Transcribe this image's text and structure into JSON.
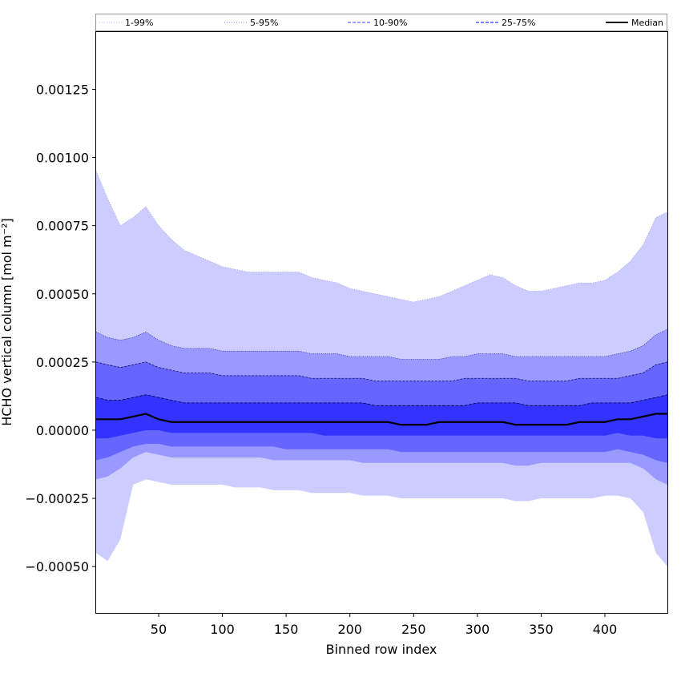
{
  "chart_data": {
    "type": "area",
    "title": "",
    "xlabel": "Binned row index",
    "ylabel": "HCHO vertical column [mol m⁻²]",
    "xlim": [
      1,
      449
    ],
    "ylim": [
      -0.00067,
      0.00146
    ],
    "x_ticks": [
      50,
      100,
      150,
      200,
      250,
      300,
      350,
      400
    ],
    "x_tick_labels": [
      "50",
      "100",
      "150",
      "200",
      "250",
      "300",
      "350",
      "400"
    ],
    "y_ticks": [
      -0.0005,
      -0.00025,
      0.0,
      0.00025,
      0.0005,
      0.00075,
      0.001,
      0.00125
    ],
    "y_tick_labels": [
      "−0.00050",
      "−0.00025",
      "0.00000",
      "0.00025",
      "0.00050",
      "0.00075",
      "0.00100",
      "0.00125"
    ],
    "grid": false,
    "legend_position": "top",
    "legend": [
      {
        "label": "1-99%",
        "color": "#ccccff",
        "style": "dotted"
      },
      {
        "label": "5-95%",
        "color": "#9999ff",
        "style": "dotted"
      },
      {
        "label": "10-90%",
        "color": "#6666ff",
        "style": "dashed"
      },
      {
        "label": "25-75%",
        "color": "#3333ff",
        "style": "dashed"
      },
      {
        "label": "Median",
        "color": "#000000",
        "style": "solid"
      }
    ],
    "x": [
      1,
      10,
      20,
      30,
      40,
      50,
      60,
      70,
      80,
      90,
      100,
      110,
      120,
      130,
      140,
      150,
      160,
      170,
      180,
      190,
      200,
      210,
      220,
      230,
      240,
      250,
      260,
      270,
      280,
      290,
      300,
      310,
      320,
      330,
      340,
      350,
      360,
      370,
      380,
      390,
      400,
      410,
      420,
      430,
      440,
      449
    ],
    "series": [
      {
        "name": "1-99%",
        "fill": "#ccccff",
        "upper": [
          0.00095,
          0.00085,
          0.00075,
          0.00078,
          0.00082,
          0.00075,
          0.0007,
          0.00066,
          0.00064,
          0.00062,
          0.0006,
          0.00059,
          0.00058,
          0.00058,
          0.00058,
          0.00058,
          0.00058,
          0.00056,
          0.00055,
          0.00054,
          0.00052,
          0.00051,
          0.0005,
          0.00049,
          0.00048,
          0.00047,
          0.00048,
          0.00049,
          0.00051,
          0.00053,
          0.00055,
          0.00057,
          0.00056,
          0.00053,
          0.00051,
          0.00051,
          0.00052,
          0.00053,
          0.00054,
          0.00054,
          0.00055,
          0.00058,
          0.00062,
          0.00068,
          0.00078,
          0.0008
        ],
        "lower": [
          -0.00045,
          -0.00048,
          -0.0004,
          -0.0002,
          -0.00018,
          -0.00019,
          -0.0002,
          -0.0002,
          -0.0002,
          -0.0002,
          -0.0002,
          -0.00021,
          -0.00021,
          -0.00021,
          -0.00022,
          -0.00022,
          -0.00022,
          -0.00023,
          -0.00023,
          -0.00023,
          -0.00023,
          -0.00024,
          -0.00024,
          -0.00024,
          -0.00025,
          -0.00025,
          -0.00025,
          -0.00025,
          -0.00025,
          -0.00025,
          -0.00025,
          -0.00025,
          -0.00025,
          -0.00026,
          -0.00026,
          -0.00025,
          -0.00025,
          -0.00025,
          -0.00025,
          -0.00025,
          -0.00024,
          -0.00024,
          -0.00025,
          -0.0003,
          -0.00045,
          -0.0005
        ]
      },
      {
        "name": "5-95%",
        "fill": "#9999ff",
        "upper": [
          0.00036,
          0.00034,
          0.00033,
          0.00034,
          0.00036,
          0.00033,
          0.00031,
          0.0003,
          0.0003,
          0.0003,
          0.00029,
          0.00029,
          0.00029,
          0.00029,
          0.00029,
          0.00029,
          0.00029,
          0.00028,
          0.00028,
          0.00028,
          0.00027,
          0.00027,
          0.00027,
          0.00027,
          0.00026,
          0.00026,
          0.00026,
          0.00026,
          0.00027,
          0.00027,
          0.00028,
          0.00028,
          0.00028,
          0.00027,
          0.00027,
          0.00027,
          0.00027,
          0.00027,
          0.00027,
          0.00027,
          0.00027,
          0.00028,
          0.00029,
          0.00031,
          0.00035,
          0.00037
        ],
        "lower": [
          -0.00018,
          -0.00017,
          -0.00014,
          -0.0001,
          -8e-05,
          -9e-05,
          -0.0001,
          -0.0001,
          -0.0001,
          -0.0001,
          -0.0001,
          -0.0001,
          -0.0001,
          -0.0001,
          -0.00011,
          -0.00011,
          -0.00011,
          -0.00011,
          -0.00011,
          -0.00011,
          -0.00011,
          -0.00012,
          -0.00012,
          -0.00012,
          -0.00012,
          -0.00012,
          -0.00012,
          -0.00012,
          -0.00012,
          -0.00012,
          -0.00012,
          -0.00012,
          -0.00012,
          -0.00013,
          -0.00013,
          -0.00012,
          -0.00012,
          -0.00012,
          -0.00012,
          -0.00012,
          -0.00012,
          -0.00012,
          -0.00012,
          -0.00014,
          -0.00018,
          -0.0002
        ]
      },
      {
        "name": "10-90%",
        "fill": "#6666ff",
        "upper": [
          0.00025,
          0.00024,
          0.00023,
          0.00024,
          0.00025,
          0.00023,
          0.00022,
          0.00021,
          0.00021,
          0.00021,
          0.0002,
          0.0002,
          0.0002,
          0.0002,
          0.0002,
          0.0002,
          0.0002,
          0.00019,
          0.00019,
          0.00019,
          0.00019,
          0.00019,
          0.00018,
          0.00018,
          0.00018,
          0.00018,
          0.00018,
          0.00018,
          0.00018,
          0.00019,
          0.00019,
          0.00019,
          0.00019,
          0.00019,
          0.00018,
          0.00018,
          0.00018,
          0.00018,
          0.00019,
          0.00019,
          0.00019,
          0.00019,
          0.0002,
          0.00021,
          0.00024,
          0.00025
        ],
        "lower": [
          -0.00011,
          -0.0001,
          -8e-05,
          -6e-05,
          -5e-05,
          -5e-05,
          -6e-05,
          -6e-05,
          -6e-05,
          -6e-05,
          -6e-05,
          -6e-05,
          -6e-05,
          -6e-05,
          -6e-05,
          -7e-05,
          -7e-05,
          -7e-05,
          -7e-05,
          -7e-05,
          -7e-05,
          -7e-05,
          -7e-05,
          -7e-05,
          -8e-05,
          -8e-05,
          -8e-05,
          -8e-05,
          -8e-05,
          -8e-05,
          -8e-05,
          -8e-05,
          -8e-05,
          -8e-05,
          -8e-05,
          -8e-05,
          -8e-05,
          -8e-05,
          -8e-05,
          -8e-05,
          -8e-05,
          -7e-05,
          -8e-05,
          -9e-05,
          -0.00011,
          -0.00012
        ]
      },
      {
        "name": "25-75%",
        "fill": "#3333ff",
        "upper": [
          0.00012,
          0.00011,
          0.00011,
          0.00012,
          0.00013,
          0.00012,
          0.00011,
          0.0001,
          0.0001,
          0.0001,
          0.0001,
          0.0001,
          0.0001,
          0.0001,
          0.0001,
          0.0001,
          0.0001,
          0.0001,
          0.0001,
          0.0001,
          0.0001,
          0.0001,
          9e-05,
          9e-05,
          9e-05,
          9e-05,
          9e-05,
          9e-05,
          9e-05,
          9e-05,
          0.0001,
          0.0001,
          0.0001,
          0.0001,
          9e-05,
          9e-05,
          9e-05,
          9e-05,
          9e-05,
          0.0001,
          0.0001,
          0.0001,
          0.0001,
          0.00011,
          0.00012,
          0.00013
        ],
        "lower": [
          -3e-05,
          -3e-05,
          -2e-05,
          -1e-05,
          0.0,
          0.0,
          -1e-05,
          -1e-05,
          -1e-05,
          -1e-05,
          -1e-05,
          -1e-05,
          -1e-05,
          -1e-05,
          -1e-05,
          -1e-05,
          -1e-05,
          -1e-05,
          -2e-05,
          -2e-05,
          -2e-05,
          -2e-05,
          -2e-05,
          -2e-05,
          -2e-05,
          -2e-05,
          -2e-05,
          -2e-05,
          -2e-05,
          -2e-05,
          -2e-05,
          -2e-05,
          -2e-05,
          -2e-05,
          -2e-05,
          -2e-05,
          -2e-05,
          -2e-05,
          -2e-05,
          -2e-05,
          -2e-05,
          -1e-05,
          -2e-05,
          -2e-05,
          -3e-05,
          -3e-05
        ]
      },
      {
        "name": "Median",
        "line": "#000000",
        "values": [
          4e-05,
          4e-05,
          4e-05,
          5e-05,
          6e-05,
          4e-05,
          3e-05,
          3e-05,
          3e-05,
          3e-05,
          3e-05,
          3e-05,
          3e-05,
          3e-05,
          3e-05,
          3e-05,
          3e-05,
          3e-05,
          3e-05,
          3e-05,
          3e-05,
          3e-05,
          3e-05,
          3e-05,
          2e-05,
          2e-05,
          2e-05,
          3e-05,
          3e-05,
          3e-05,
          3e-05,
          3e-05,
          3e-05,
          2e-05,
          2e-05,
          2e-05,
          2e-05,
          2e-05,
          3e-05,
          3e-05,
          3e-05,
          4e-05,
          4e-05,
          5e-05,
          6e-05,
          6e-05
        ]
      }
    ]
  }
}
